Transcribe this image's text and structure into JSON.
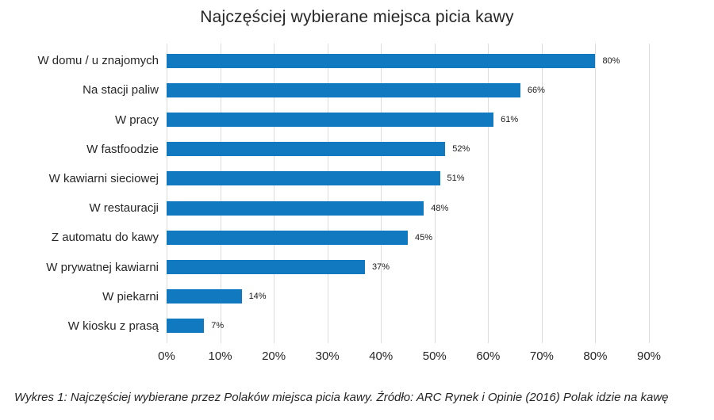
{
  "chart_data": {
    "type": "bar",
    "orientation": "horizontal",
    "title": "Najczęściej wybierane miejsca picia kawy",
    "categories": [
      "W domu / u znajomych",
      "Na stacji paliw",
      "W pracy",
      "W fastfoodzie",
      "W kawiarni sieciowej",
      "W restauracji",
      "Z automatu do kawy",
      "W prywatnej kawiarni",
      "W piekarni",
      "W kiosku z prasą"
    ],
    "values": [
      80,
      66,
      61,
      52,
      51,
      48,
      45,
      37,
      14,
      7
    ],
    "value_suffix": "%",
    "x_ticks": [
      "0%",
      "10%",
      "20%",
      "30%",
      "40%",
      "50%",
      "60%",
      "70%",
      "80%",
      "90%"
    ],
    "x_tick_values": [
      0,
      10,
      20,
      30,
      40,
      50,
      60,
      70,
      80,
      90
    ],
    "xlim": [
      0,
      90
    ],
    "grid": true,
    "legend": false,
    "bar_color": "#1179BF",
    "gridline_color": "#DCDCDC",
    "text_color": "#262626"
  },
  "caption": "Wykres 1: Najczęściej wybierane przez Polaków miejsca picia kawy. Źródło: ARC Rynek i Opinie (2016) Polak idzie na kawę"
}
